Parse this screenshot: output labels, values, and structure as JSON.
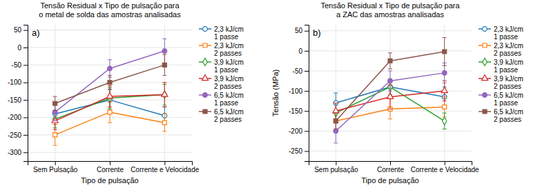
{
  "chart_data": [
    {
      "type": "line",
      "title": "Tensão Residual x Tipo de pulsação para\no metal de solda das amostras analisadas",
      "x_label": "Tipo de pulsação",
      "categories": [
        "Sem Pulsação",
        "Corrente",
        "Corrente e Velocidade"
      ],
      "ylim": [
        -325,
        65
      ],
      "yticks": [
        50,
        0,
        -50,
        -100,
        -150,
        -200,
        -250,
        -300
      ],
      "grid": true,
      "legend": "right",
      "annotations": [
        "a)"
      ],
      "series": [
        {
          "name": "2,3 kJ/cm\n1 passe",
          "marker": "circle-open",
          "values": [
            -190,
            -150,
            -195
          ],
          "errors": [
            30,
            30,
            25
          ]
        },
        {
          "name": "2,3 kJ/cm\n2 passes",
          "marker": "square-open",
          "values": [
            -250,
            -185,
            -215
          ],
          "errors": [
            30,
            30,
            25
          ]
        },
        {
          "name": "3,9 kJ/cm\n1 passe",
          "marker": "diamond-open",
          "values": [
            -205,
            -145,
            -135
          ],
          "errors": [
            25,
            30,
            30
          ]
        },
        {
          "name": "3,9 kJ/cm\n2 passes",
          "marker": "triangle-open",
          "values": [
            -210,
            -140,
            -135
          ],
          "errors": [
            25,
            30,
            35
          ]
        },
        {
          "name": "6,5 kJ/cm\n1 passe",
          "marker": "circle",
          "values": [
            -185,
            -60,
            -10
          ],
          "errors": [
            25,
            25,
            35
          ]
        },
        {
          "name": "6,5 kJ/cm\n2 passes",
          "marker": "square",
          "values": [
            -160,
            -100,
            -50
          ],
          "errors": [
            20,
            20,
            30
          ]
        }
      ]
    },
    {
      "type": "line",
      "title": "Tensão Residual x Tipo de pulsação para\na ZAC das amostras analisadas",
      "x_label": "Tipo de pulsação",
      "y_label": "Tensão (MPa)",
      "categories": [
        "Sem pulsação",
        "Corrente",
        "Corrente e Velocidade"
      ],
      "ylim": [
        -275,
        65
      ],
      "yticks": [
        50,
        0,
        -50,
        -100,
        -150,
        -200,
        -250
      ],
      "grid": true,
      "legend": "right",
      "annotations": [
        "b)"
      ],
      "series": [
        {
          "name": "2,3 kJ/cm\n1 passe",
          "marker": "circle-open",
          "values": [
            -130,
            -90,
            -115
          ],
          "errors": [
            25,
            20,
            25
          ]
        },
        {
          "name": "2,3 kJ/cm\n2 passes",
          "marker": "square-open",
          "values": [
            -175,
            -145,
            -140
          ],
          "errors": [
            20,
            25,
            25
          ]
        },
        {
          "name": "3,9 kJ/cm\n1 passe",
          "marker": "diamond-open",
          "values": [
            -155,
            -90,
            -175
          ],
          "errors": [
            25,
            20,
            20
          ]
        },
        {
          "name": "3,9 kJ/cm\n2 passes",
          "marker": "triangle-open",
          "values": [
            -150,
            -115,
            -100
          ],
          "errors": [
            20,
            30,
            25
          ]
        },
        {
          "name": "6,5 kJ/cm\n1 passe",
          "marker": "circle",
          "values": [
            -200,
            -75,
            -55
          ],
          "errors": [
            30,
            25,
            25
          ]
        },
        {
          "name": "6,5 kJ/cm\n2 passes",
          "marker": "square",
          "values": [
            -175,
            -25,
            -2
          ],
          "errors": [
            20,
            20,
            35
          ]
        }
      ]
    }
  ]
}
